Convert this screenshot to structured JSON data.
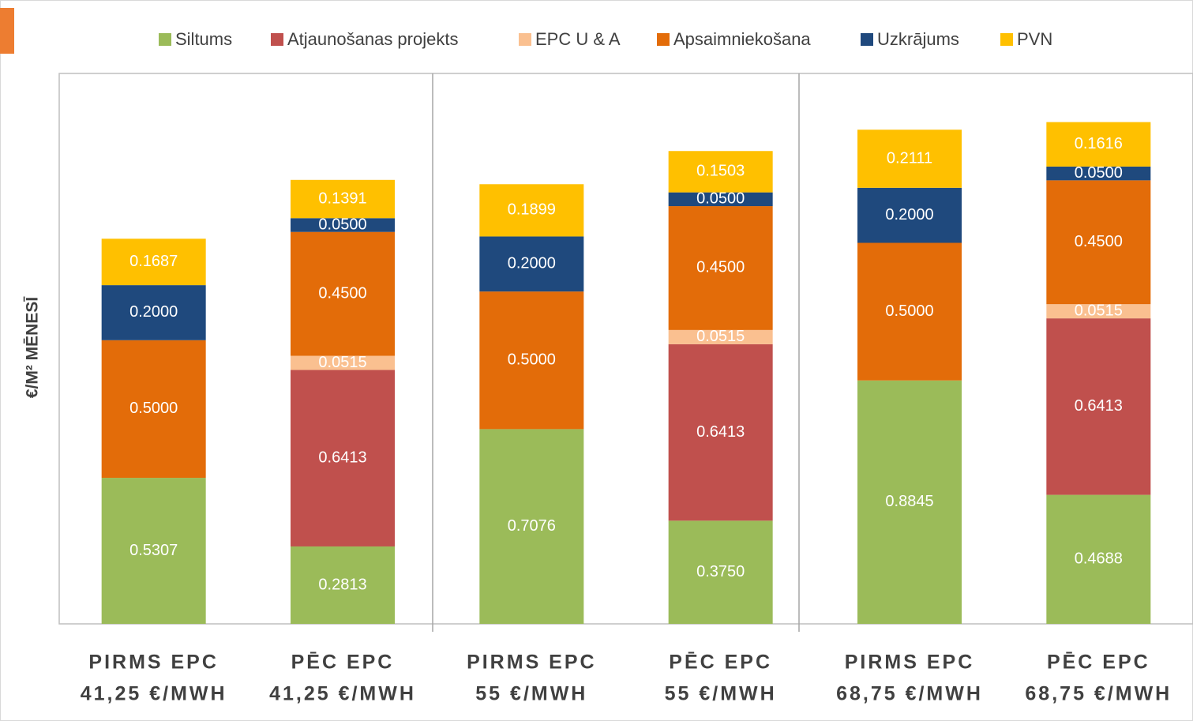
{
  "chart_data": {
    "type": "stacked_bar",
    "y_axis_label": "€/M² MĒNESĪ",
    "categories": [
      [
        "PIRMS EPC",
        "41,25 €/MWH"
      ],
      [
        "PĒC EPC",
        "41,25 €/MWH"
      ],
      [
        "PIRMS EPC",
        "55 €/MWH"
      ],
      [
        "PĒC EPC",
        "55 €/MWH"
      ],
      [
        "PIRMS EPC",
        "68,75 €/MWH"
      ],
      [
        "PĒC EPC",
        "68,75 €/MWH"
      ]
    ],
    "ylim": [
      0,
      2
    ],
    "series": [
      {
        "name": "Siltums",
        "color": "#9bbb59",
        "values": [
          0.5307,
          0.2813,
          0.7076,
          0.375,
          0.8845,
          0.4688
        ],
        "value_labels": [
          "0.5307",
          "0.2813",
          "0.7076",
          "0.3750",
          "0.8845",
          "0.4688"
        ]
      },
      {
        "name": "Atjaunošanas projekts",
        "color": "#c0504d",
        "values": [
          null,
          0.6413,
          null,
          0.6413,
          null,
          0.6413
        ],
        "value_labels": [
          null,
          "0.6413",
          null,
          "0.6413",
          null,
          "0.6413"
        ]
      },
      {
        "name": "EPC U & A",
        "color": "#fac090",
        "values": [
          null,
          0.0515,
          null,
          0.0515,
          null,
          0.0515
        ],
        "value_labels": [
          null,
          "0.0515",
          null,
          "0.0515",
          null,
          "0.0515"
        ]
      },
      {
        "name": "Apsaimniekošana",
        "color": "#e36c09",
        "values": [
          0.5,
          0.45,
          0.5,
          0.45,
          0.5,
          0.45
        ],
        "value_labels": [
          "0.5000",
          "0.4500",
          "0.5000",
          "0.4500",
          "0.5000",
          "0.4500"
        ]
      },
      {
        "name": "Uzkrājums",
        "color": "#1f497d",
        "values": [
          0.2,
          0.05,
          0.2,
          0.05,
          0.2,
          0.05
        ],
        "value_labels": [
          "0.2000",
          "0.0500",
          "0.2000",
          "0.0500",
          "0.2000",
          "0.0500"
        ]
      },
      {
        "name": "PVN",
        "color": "#ffc000",
        "values": [
          0.1687,
          0.1391,
          0.1899,
          0.1503,
          0.2111,
          0.1616
        ],
        "value_labels": [
          "0.1687",
          "0.1391",
          "0.1899",
          "0.1503",
          "0.2111",
          "0.1616"
        ]
      }
    ]
  }
}
